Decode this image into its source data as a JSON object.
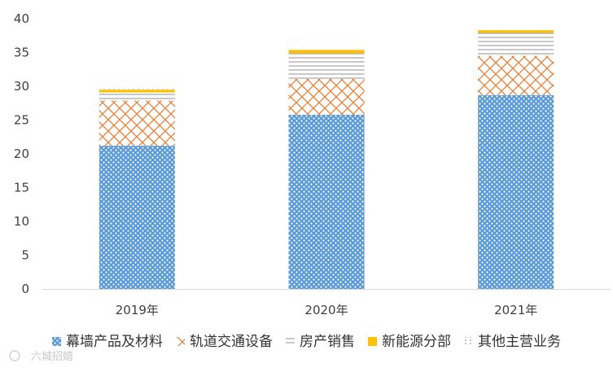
{
  "chart_data": {
    "type": "bar",
    "stacked": true,
    "title": "",
    "xlabel": "",
    "ylabel": "",
    "categories": [
      "2019年",
      "2020年",
      "2021年"
    ],
    "ylim": [
      0,
      40
    ],
    "yticks": [
      0,
      5,
      10,
      15,
      20,
      25,
      30,
      35,
      40
    ],
    "grid": false,
    "legend_position": "bottom",
    "series": [
      {
        "name": "幕墙产品及材料",
        "values": [
          21.2,
          25.8,
          28.7
        ],
        "color": "#5b9bd5",
        "pattern": "dots"
      },
      {
        "name": "轨道交通设备",
        "values": [
          6.7,
          5.3,
          5.8
        ],
        "color": "#ed7d31",
        "pattern": "zigzag"
      },
      {
        "name": "房产销售",
        "values": [
          1.2,
          3.8,
          3.4
        ],
        "color": "#a5a5a5",
        "pattern": "hlines"
      },
      {
        "name": "新能源分部",
        "values": [
          0.4,
          0.5,
          0.4
        ],
        "color": "#ffc000",
        "pattern": "solid"
      },
      {
        "name": "其他主营业务",
        "values": [
          0.1,
          0.1,
          0.1
        ],
        "color": "#bfbfbf",
        "pattern": "sparse"
      }
    ]
  },
  "watermark": {
    "text": "六城招嬉"
  }
}
